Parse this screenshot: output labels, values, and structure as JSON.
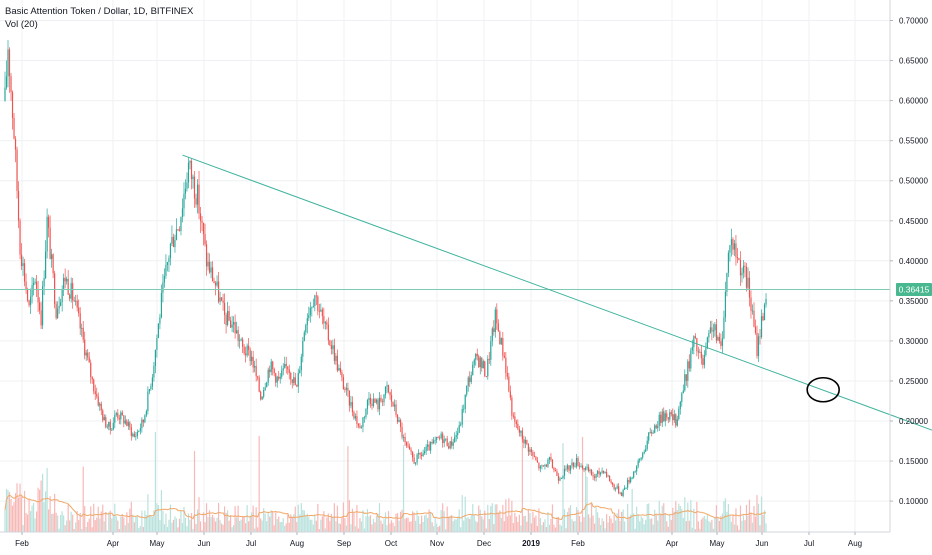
{
  "header": {
    "title": "Basic Attention Token / Dollar, 1D, BITFINEX",
    "indicator": "Vol (20)"
  },
  "colors": {
    "up": "#26a69a",
    "up_fill": "#b9e2dd",
    "down": "#ef5350",
    "down_fill": "#f7b9b7",
    "trendline": "#3fb39e",
    "price_line": "#7dc9b3",
    "price_label_bg": "#49b78f",
    "vol_ma": "#f0a868",
    "grid": "#eef0f3",
    "axis_text": "#131722",
    "marker": "#000000"
  },
  "chart_data": {
    "type": "candlestick",
    "title": "Basic Attention Token / Dollar, 1D, BITFINEX",
    "indicator": "Vol (20)",
    "x_ticks": [
      "Feb",
      "Apr",
      "May",
      "Jun",
      "Jul",
      "Aug",
      "Sep",
      "Oct",
      "Nov",
      "Dec",
      "2019",
      "Feb",
      "Apr",
      "May",
      "Jun",
      "Jul",
      "Aug"
    ],
    "y_ticks": [
      "0.10000",
      "0.15000",
      "0.20000",
      "0.25000",
      "0.30000",
      "0.35000",
      "0.40000",
      "0.45000",
      "0.50000",
      "0.55000",
      "0.60000",
      "0.65000",
      "0.70000"
    ],
    "ylim": [
      0.055,
      0.72
    ],
    "current_price": 0.36415,
    "current_price_label": "0.36415",
    "grid": true,
    "price_path_days": [
      0,
      2,
      6,
      10,
      16,
      20,
      24,
      28,
      34,
      40,
      46,
      52,
      58,
      66,
      70,
      74,
      80,
      86,
      92,
      98,
      104,
      110,
      116,
      122,
      128,
      134,
      140,
      146,
      152,
      158,
      164,
      170,
      176,
      182,
      188,
      194,
      200,
      206,
      212,
      218,
      224,
      230,
      236,
      242,
      248,
      254,
      260,
      266,
      272,
      278,
      284,
      290,
      296,
      302,
      308,
      314,
      320,
      326,
      332,
      338,
      344,
      350,
      356,
      362,
      368,
      374,
      380,
      386,
      392,
      398,
      404,
      410,
      416,
      422,
      428,
      434,
      440,
      446,
      452,
      458,
      464,
      470,
      476,
      482,
      488,
      494,
      500,
      506
    ],
    "price_path_values": [
      0.6,
      0.67,
      0.56,
      0.42,
      0.34,
      0.38,
      0.33,
      0.45,
      0.34,
      0.38,
      0.35,
      0.3,
      0.25,
      0.2,
      0.19,
      0.21,
      0.2,
      0.18,
      0.2,
      0.26,
      0.35,
      0.42,
      0.45,
      0.52,
      0.48,
      0.4,
      0.37,
      0.33,
      0.32,
      0.29,
      0.28,
      0.23,
      0.27,
      0.25,
      0.27,
      0.24,
      0.33,
      0.36,
      0.32,
      0.29,
      0.25,
      0.22,
      0.19,
      0.23,
      0.22,
      0.24,
      0.21,
      0.17,
      0.15,
      0.16,
      0.17,
      0.18,
      0.17,
      0.19,
      0.25,
      0.28,
      0.26,
      0.33,
      0.28,
      0.2,
      0.18,
      0.16,
      0.14,
      0.15,
      0.13,
      0.14,
      0.15,
      0.14,
      0.13,
      0.14,
      0.12,
      0.11,
      0.13,
      0.15,
      0.18,
      0.2,
      0.21,
      0.2,
      0.25,
      0.3,
      0.27,
      0.32,
      0.29,
      0.43,
      0.4,
      0.37,
      0.29,
      0.36
    ],
    "trendline": {
      "from": {
        "day": 118,
        "value": 0.532
      },
      "to": {
        "day": 655,
        "value": 0.162
      }
    },
    "annotation": {
      "type": "ellipse",
      "day": 544,
      "value": 0.239
    }
  }
}
